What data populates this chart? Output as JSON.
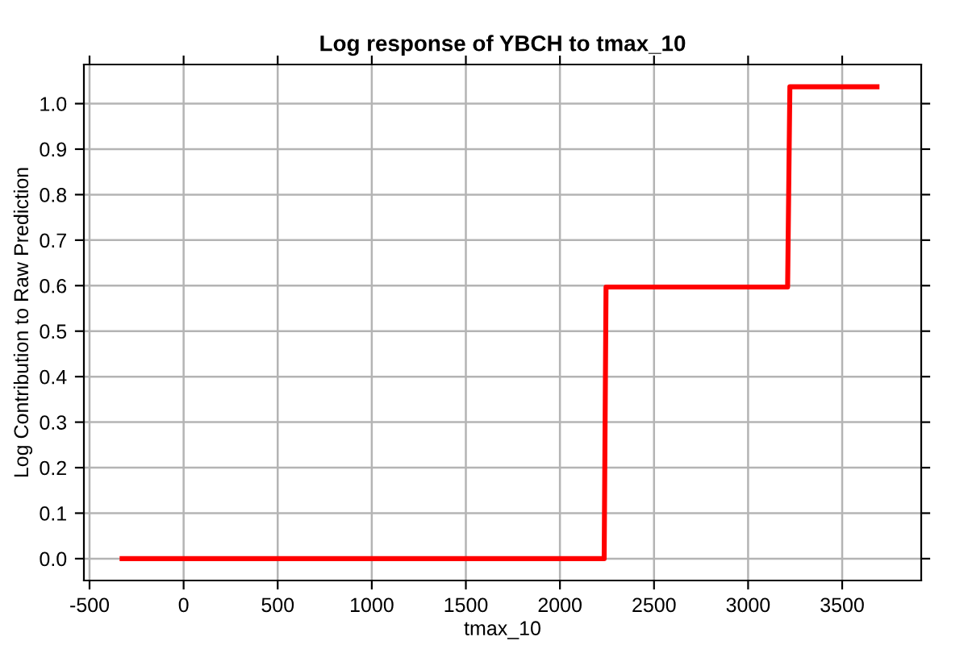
{
  "chart_data": {
    "type": "line",
    "title": "Log response of YBCH to tmax_10",
    "xlabel": "tmax_10",
    "ylabel": "Log Contribution to Raw Prediction",
    "x": [
      -327,
      2235,
      2245,
      3210,
      3222,
      3685
    ],
    "series": [
      {
        "color": "#ff0000",
        "values": [
          0,
          0,
          0.597,
          0.597,
          1.037,
          1.037
        ]
      }
    ],
    "xlim": [
      -530,
      3920
    ],
    "xticks": [
      -500,
      0,
      500,
      1000,
      1500,
      2000,
      2500,
      3000,
      3500
    ],
    "ylim": [
      -0.048,
      1.086
    ],
    "yticks": [
      {
        "value": 0,
        "label": "0.0"
      },
      0.1,
      0.2,
      0.3,
      0.4,
      0.5,
      0.6,
      0.7,
      0.8,
      0.9,
      {
        "value": 1,
        "label": "1.0"
      }
    ],
    "grid": true,
    "line_style": "solid"
  }
}
